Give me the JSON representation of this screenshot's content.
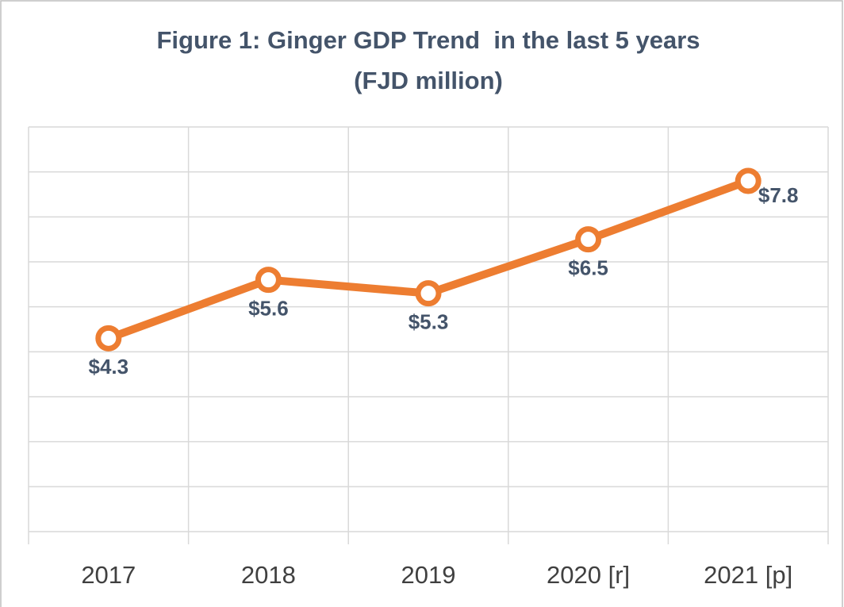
{
  "chart_data": {
    "type": "line",
    "title": [
      "Figure 1: Ginger GDP Trend  in the last 5 years",
      "(FJD million)"
    ],
    "categories": [
      "2017",
      "2018",
      "2019",
      "2020 [r]",
      "2021 [p]"
    ],
    "series": [
      {
        "name": "Ginger GDP",
        "color": "#ed7d31",
        "values": [
          4.3,
          5.6,
          5.3,
          6.5,
          7.8
        ],
        "value_labels": [
          "$4.3",
          "$5.6",
          "$5.3",
          "$6.5",
          "$7.8"
        ]
      }
    ],
    "ylim": [
      0,
      9
    ],
    "yticks": [
      0,
      1,
      2,
      3,
      4,
      5,
      6,
      7,
      8,
      9
    ],
    "grid": true
  }
}
